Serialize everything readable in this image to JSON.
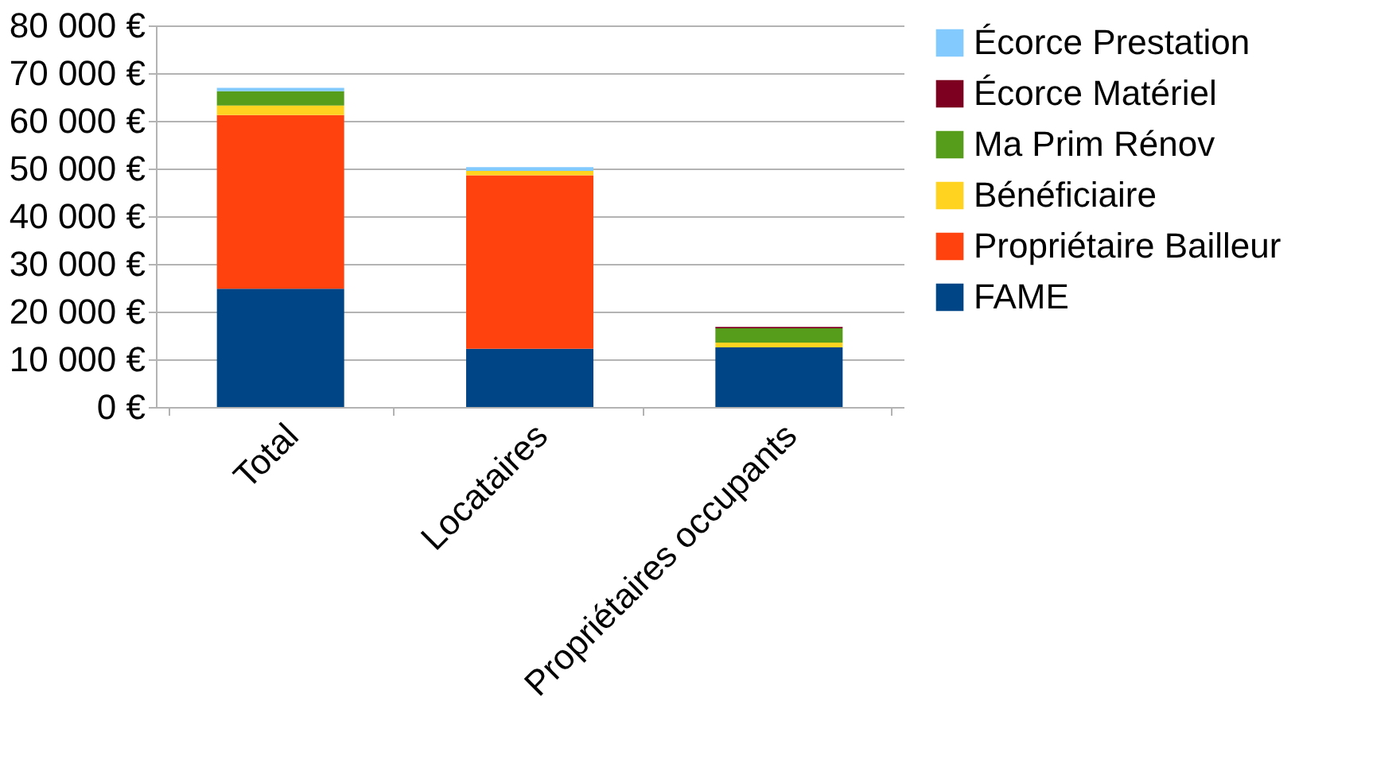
{
  "chart_data": {
    "type": "bar",
    "stacked": true,
    "categories": [
      "Total",
      "Locataires",
      "Propriétaires occupants"
    ],
    "series": [
      {
        "name": "FAME",
        "color": "#004586",
        "values": [
          24800,
          12200,
          12500
        ]
      },
      {
        "name": "Propriétaire Bailleur",
        "color": "#ff420e",
        "values": [
          36400,
          36400,
          0
        ]
      },
      {
        "name": "Bénéficiaire",
        "color": "#ffd320",
        "values": [
          2000,
          900,
          1000
        ]
      },
      {
        "name": "Ma Prim Rénov",
        "color": "#579d1c",
        "values": [
          3000,
          0,
          3000
        ]
      },
      {
        "name": "Écorce Matériel",
        "color": "#7e0021",
        "values": [
          0,
          0,
          300
        ]
      },
      {
        "name": "Écorce Prestation",
        "color": "#83caff",
        "values": [
          700,
          800,
          0
        ]
      }
    ],
    "ylim": [
      0,
      80000
    ],
    "yticks": [
      {
        "value": 0,
        "label": "0 €"
      },
      {
        "value": 10000,
        "label": "10 000 €"
      },
      {
        "value": 20000,
        "label": "20 000 €"
      },
      {
        "value": 30000,
        "label": "30 000 €"
      },
      {
        "value": 40000,
        "label": "40 000 €"
      },
      {
        "value": 50000,
        "label": "50 000 €"
      },
      {
        "value": 60000,
        "label": "60 000 €"
      },
      {
        "value": 70000,
        "label": "70 000 €"
      },
      {
        "value": 80000,
        "label": "80 000 €"
      }
    ],
    "grid": "y",
    "legend": "right"
  }
}
